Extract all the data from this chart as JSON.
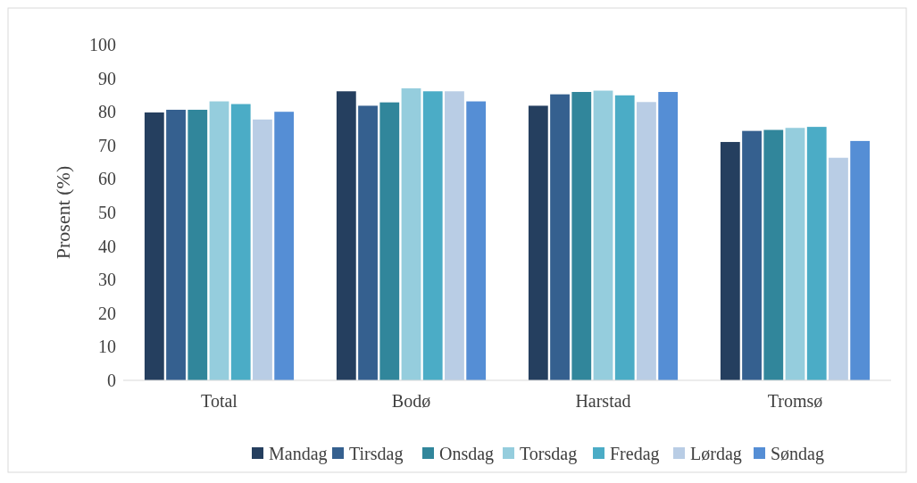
{
  "chart_data": {
    "type": "bar",
    "ylabel": "Prosent (%)",
    "categories": [
      "Total",
      "Bodø",
      "Harstad",
      "Tromsø"
    ],
    "ylim": [
      0,
      100
    ],
    "yticks": [
      0,
      10,
      20,
      30,
      40,
      50,
      60,
      70,
      80,
      90,
      100
    ],
    "grid": false,
    "legend": "bottom",
    "series": [
      {
        "name": "Mandag",
        "color": "#253f5f",
        "values": [
          79.8,
          86.1,
          81.8,
          71.0
        ]
      },
      {
        "name": "Tirsdag",
        "color": "#35608f",
        "values": [
          80.6,
          81.8,
          85.2,
          74.3
        ]
      },
      {
        "name": "Onsdag",
        "color": "#31869b",
        "values": [
          80.6,
          82.8,
          85.9,
          74.6
        ]
      },
      {
        "name": "Torsdag",
        "color": "#95cddd",
        "values": [
          83.1,
          87.0,
          86.3,
          75.2
        ]
      },
      {
        "name": "Fredag",
        "color": "#4bacc6",
        "values": [
          82.3,
          86.1,
          84.9,
          75.5
        ]
      },
      {
        "name": "Lørdag",
        "color": "#b9cde5",
        "values": [
          77.7,
          86.1,
          82.9,
          66.3
        ]
      },
      {
        "name": "Søndag",
        "color": "#558ed5",
        "values": [
          80.0,
          83.1,
          85.9,
          71.3
        ]
      }
    ]
  }
}
